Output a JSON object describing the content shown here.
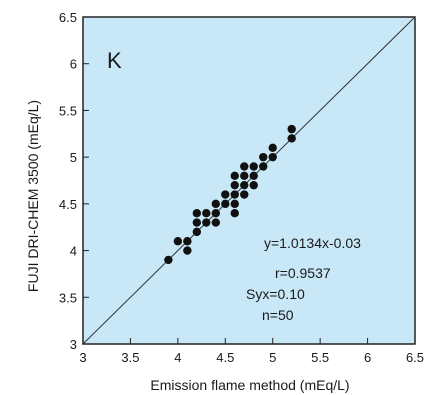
{
  "chart_data": {
    "type": "scatter",
    "panel_label": "K",
    "title": "",
    "xlabel": "Emission flame method (mEq/L)",
    "ylabel": "FUJI DRI-CHEM 3500 (mEq/L)",
    "xlim": [
      3,
      6.5
    ],
    "ylim": [
      3,
      6.5
    ],
    "xticks": [
      "3",
      "3.5",
      "4",
      "4.5",
      "5",
      "5.5",
      "6",
      "6.5"
    ],
    "yticks": [
      "3",
      "3.5",
      "4",
      "4.5",
      "5",
      "5.5",
      "6",
      "6.5"
    ],
    "grid": false,
    "background_color": "#c8e8f8",
    "point_color": "#111111",
    "line_color": "#333333",
    "reference_line": {
      "from": [
        3,
        3
      ],
      "to": [
        6.5,
        6.5
      ]
    },
    "annotations": [
      "y=1.0134x-0.03",
      "r=0.9537",
      "Syx=0.10",
      "n=50"
    ],
    "points": [
      {
        "x": 3.9,
        "y": 3.9
      },
      {
        "x": 4.0,
        "y": 4.1
      },
      {
        "x": 4.1,
        "y": 4.0
      },
      {
        "x": 4.1,
        "y": 4.1
      },
      {
        "x": 4.2,
        "y": 4.2
      },
      {
        "x": 4.2,
        "y": 4.3
      },
      {
        "x": 4.2,
        "y": 4.4
      },
      {
        "x": 4.3,
        "y": 4.3
      },
      {
        "x": 4.3,
        "y": 4.4
      },
      {
        "x": 4.4,
        "y": 4.3
      },
      {
        "x": 4.4,
        "y": 4.4
      },
      {
        "x": 4.4,
        "y": 4.5
      },
      {
        "x": 4.5,
        "y": 4.5
      },
      {
        "x": 4.5,
        "y": 4.6
      },
      {
        "x": 4.6,
        "y": 4.4
      },
      {
        "x": 4.6,
        "y": 4.5
      },
      {
        "x": 4.6,
        "y": 4.6
      },
      {
        "x": 4.6,
        "y": 4.7
      },
      {
        "x": 4.6,
        "y": 4.8
      },
      {
        "x": 4.7,
        "y": 4.6
      },
      {
        "x": 4.7,
        "y": 4.7
      },
      {
        "x": 4.7,
        "y": 4.8
      },
      {
        "x": 4.7,
        "y": 4.9
      },
      {
        "x": 4.8,
        "y": 4.7
      },
      {
        "x": 4.8,
        "y": 4.8
      },
      {
        "x": 4.8,
        "y": 4.9
      },
      {
        "x": 4.9,
        "y": 4.9
      },
      {
        "x": 4.9,
        "y": 5.0
      },
      {
        "x": 5.0,
        "y": 5.0
      },
      {
        "x": 5.0,
        "y": 5.1
      },
      {
        "x": 5.2,
        "y": 5.2
      },
      {
        "x": 5.2,
        "y": 5.3
      }
    ]
  }
}
